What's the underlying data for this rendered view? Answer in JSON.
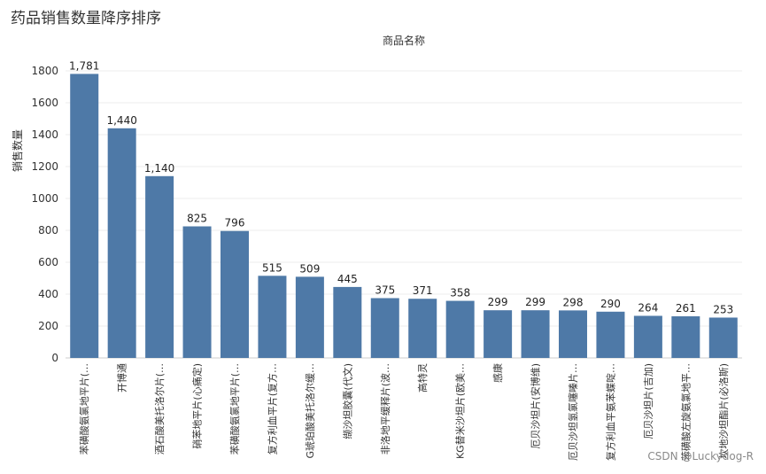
{
  "page": {
    "title": "药品销售数量降序排序",
    "watermark": "CSDN @Luckydog-R"
  },
  "chart_data": {
    "type": "bar",
    "title": "药品销售数量降序排序",
    "xlabel": "商品名称",
    "ylabel": "销售数量",
    "ylim": [
      0,
      1900
    ],
    "yticks": [
      0,
      200,
      400,
      600,
      800,
      1000,
      1200,
      1400,
      1600,
      1800
    ],
    "grid": true,
    "bar_color": "#4e79a7",
    "categories": [
      "苯磺酸氨氯地平片(…",
      "开博通",
      "酒石酸美托洛尔片(…",
      "硝苯地平片(心痛定)",
      "苯磺酸氨氯地平片(…",
      "复方利血平片(复方…",
      "G琥珀酸美托洛尔缓…",
      "缬沙坦胶囊(代文)",
      "非洛地平缓释片(波…",
      "高特灵",
      "KG替米沙坦片(欧美…",
      "感康",
      "厄贝沙坦片(安博维)",
      "厄贝沙坦氢氯噻嗪片…",
      "复方利血平氨苯蝶啶…",
      "厄贝沙坦片(吉加)",
      "苯磺酸左旋氨氯地平…",
      "坎地沙坦酯片(必洛斯)"
    ],
    "values": [
      1781,
      1440,
      1140,
      825,
      796,
      515,
      509,
      445,
      375,
      371,
      358,
      299,
      299,
      298,
      290,
      264,
      261,
      253
    ],
    "value_labels": [
      "1,781",
      "1,440",
      "1,140",
      "825",
      "796",
      "515",
      "509",
      "445",
      "375",
      "371",
      "358",
      "299",
      "299",
      "298",
      "290",
      "264",
      "261",
      "253"
    ]
  }
}
